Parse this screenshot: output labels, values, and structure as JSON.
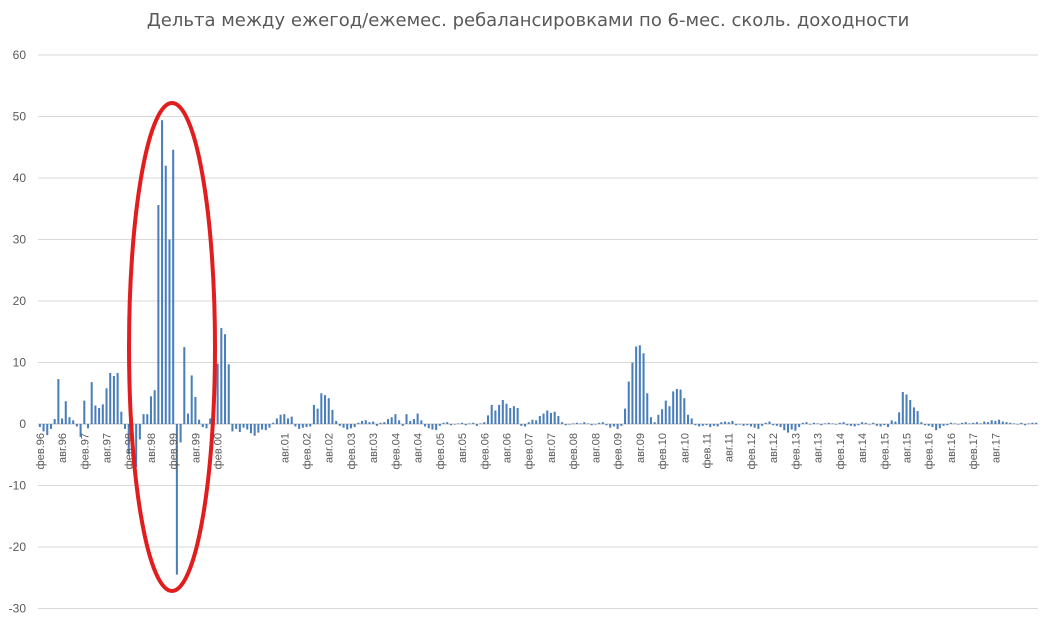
{
  "chart_data": {
    "type": "bar",
    "title": "Дельта между ежегод/ежемес. ребалансировками по 6-мес. сколь. доходности",
    "xlabel": "",
    "ylabel": "",
    "ylim": [
      -30,
      60
    ],
    "yticks": [
      -30,
      -20,
      -10,
      0,
      10,
      20,
      30,
      40,
      50,
      60
    ],
    "grid": true,
    "legend": "none",
    "bar_color": "#4a7ebb",
    "annotation": {
      "shape": "ellipse",
      "color": "#e11d1d",
      "encloses": "авг.98 – авг.99"
    },
    "x_start": "1996-02",
    "x_end": "2017-12",
    "tick_labels": [
      "фев.96",
      "авг.96",
      "фев.97",
      "авг.97",
      "фев.98",
      "авг.98",
      "фев.99",
      "авг.99",
      "фев.00",
      "авг.01",
      "фев.02",
      "авг.02",
      "фев.03",
      "авг.03",
      "фев.04",
      "авг.04",
      "фев.05",
      "авг.05",
      "фев.06",
      "авг.06",
      "фев.07",
      "авг.07",
      "фев.08",
      "авг.08",
      "фев.09",
      "авг.09",
      "фев.10",
      "авг.10",
      "фев.11",
      "авг.11",
      "фев.12",
      "авг.12",
      "фев.13",
      "авг.13",
      "фев.14",
      "авг.14",
      "фев.15",
      "авг.15",
      "фев.16",
      "авг.16",
      "фев.17",
      "авг.17"
    ],
    "values": [
      -0.5,
      -1.2,
      -1.8,
      -0.8,
      0.8,
      7.3,
      0.9,
      3.7,
      1.1,
      0.6,
      -0.4,
      -2.1,
      3.8,
      -0.7,
      6.8,
      3.0,
      2.6,
      3.2,
      5.8,
      8.3,
      7.8,
      8.3,
      2.0,
      -0.8,
      -4.9,
      -3.5,
      -7.0,
      -2.5,
      1.6,
      1.6,
      4.5,
      5.5,
      35.6,
      49.4,
      42.0,
      30.0,
      44.6,
      -24.5,
      -3.0,
      12.5,
      1.7,
      7.9,
      4.4,
      0.7,
      -0.5,
      -0.7,
      0.9,
      6.0,
      9.8,
      15.6,
      14.6,
      9.7,
      -1.2,
      -0.8,
      -1.3,
      -0.6,
      -0.9,
      -1.5,
      -1.9,
      -1.4,
      -0.9,
      -1.0,
      -0.6,
      0.2,
      0.9,
      1.5,
      1.6,
      0.9,
      1.2,
      -0.4,
      -0.8,
      -0.6,
      -0.5,
      -0.4,
      3.1,
      2.5,
      5.0,
      4.7,
      4.2,
      2.3,
      0.5,
      -0.3,
      -0.6,
      -0.9,
      -0.7,
      -0.5,
      0.2,
      0.5,
      0.6,
      0.3,
      0.4,
      -0.3,
      0.2,
      0.3,
      0.8,
      1.1,
      1.6,
      0.6,
      -0.3,
      1.6,
      0.5,
      0.8,
      1.7,
      0.6,
      -0.4,
      -0.7,
      -0.9,
      -1.0,
      -0.3,
      0.2,
      0.3,
      -0.2,
      -0.1,
      0.1,
      0.2,
      -0.2,
      0.1,
      0.2,
      -0.3,
      0.1,
      0.3,
      1.4,
      3.1,
      2.2,
      3.1,
      3.9,
      3.3,
      2.6,
      2.9,
      2.6,
      -0.3,
      -0.4,
      0.3,
      0.7,
      0.6,
      1.3,
      1.7,
      2.2,
      1.8,
      2.0,
      1.3,
      0.3,
      -0.2,
      -0.1,
      0.1,
      0.2,
      0.1,
      0.3,
      0.1,
      -0.2,
      -0.1,
      0.2,
      0.3,
      -0.2,
      -0.6,
      -0.4,
      -0.8,
      -0.3,
      2.5,
      6.9,
      10.0,
      12.6,
      12.8,
      11.5,
      5.0,
      1.1,
      0.3,
      1.5,
      2.4,
      3.8,
      2.9,
      5.3,
      5.7,
      5.6,
      4.2,
      1.5,
      0.9,
      -0.2,
      -0.4,
      -0.3,
      -0.2,
      -0.5,
      -0.3,
      -0.4,
      0.3,
      0.4,
      0.3,
      0.5,
      -0.2,
      -0.1,
      -0.3,
      -0.2,
      -0.4,
      -0.6,
      -0.8,
      -0.3,
      0.2,
      0.4,
      -0.2,
      -0.3,
      -0.5,
      -1.0,
      -1.4,
      -0.9,
      -1.1,
      -0.5,
      0.2,
      0.3,
      -0.1,
      0.2,
      0.1,
      -0.2,
      0.1,
      0.2,
      0.1,
      -0.1,
      0.2,
      0.3,
      -0.2,
      -0.3,
      -0.4,
      -0.2,
      0.3,
      0.2,
      -0.1,
      0.2,
      -0.3,
      -0.4,
      -0.2,
      -0.5,
      0.6,
      0.4,
      1.9,
      5.2,
      4.8,
      3.9,
      2.7,
      2.1,
      0.3,
      -0.2,
      -0.3,
      -0.5,
      -1.0,
      -0.7,
      -0.3,
      -0.2,
      0.2,
      0.1,
      -0.1,
      0.2,
      0.3,
      0.1,
      0.2,
      0.3,
      0.1,
      0.4,
      0.3,
      0.6,
      0.5,
      0.7,
      0.4,
      0.3,
      0.2,
      0.1,
      -0.1,
      0.2,
      -0.2,
      0.1,
      0.2,
      0.2
    ]
  }
}
